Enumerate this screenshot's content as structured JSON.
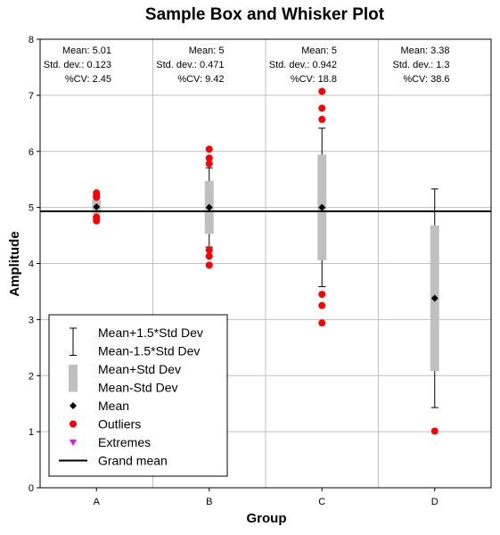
{
  "chart_data": {
    "type": "box",
    "title": "Sample Box and Whisker Plot",
    "xlabel": "Group",
    "ylabel": "Amplitude",
    "categories": [
      "A",
      "B",
      "C",
      "D"
    ],
    "ylim": [
      0,
      8
    ],
    "yticks": [
      "0",
      "1",
      "2",
      "3",
      "4",
      "5",
      "6",
      "7",
      "8"
    ],
    "grid": true,
    "grand_mean": 4.93,
    "groups": [
      {
        "label": "A",
        "mean": 5.01,
        "box_low": 4.888,
        "box_high": 5.133,
        "whisker_low": 4.826,
        "whisker_high": 5.195,
        "outliers": [
          5.26,
          5.23,
          5.18,
          4.83,
          4.79,
          4.76
        ],
        "stats": {
          "mean": "Mean: 5.01",
          "sd": "Std. dev.: 0.123",
          "cv": "%CV: 2.45"
        }
      },
      {
        "label": "B",
        "mean": 5.0,
        "box_low": 4.529,
        "box_high": 5.471,
        "whisker_low": 4.294,
        "whisker_high": 5.707,
        "outliers": [
          6.04,
          5.88,
          5.78,
          4.24,
          4.13,
          3.97
        ],
        "stats": {
          "mean": "Mean: 5",
          "sd": "Std. dev.: 0.471",
          "cv": "%CV: 9.42"
        }
      },
      {
        "label": "C",
        "mean": 5.0,
        "box_low": 4.058,
        "box_high": 5.942,
        "whisker_low": 3.587,
        "whisker_high": 6.413,
        "outliers": [
          7.07,
          6.77,
          6.57,
          3.45,
          3.25,
          2.94
        ],
        "stats": {
          "mean": "Mean: 5",
          "sd": "Std. dev.: 0.942",
          "cv": "%CV: 18.8"
        }
      },
      {
        "label": "D",
        "mean": 3.38,
        "box_low": 2.08,
        "box_high": 4.68,
        "whisker_low": 1.43,
        "whisker_high": 5.33,
        "outliers": [
          1.01
        ],
        "stats": {
          "mean": "Mean: 3.38",
          "sd": "Std. dev.: 1.3",
          "cv": "%CV: 38.6"
        }
      }
    ],
    "legend": {
      "position": "bottom-left",
      "items": [
        {
          "kind": "whisker",
          "labels": [
            "Mean+1.5*Std Dev",
            "Mean-1.5*Std Dev"
          ]
        },
        {
          "kind": "box",
          "labels": [
            "Mean+Std Dev",
            "Mean-Std Dev"
          ]
        },
        {
          "kind": "mean",
          "labels": [
            "Mean"
          ]
        },
        {
          "kind": "outlier",
          "labels": [
            "Outliers"
          ]
        },
        {
          "kind": "extreme",
          "labels": [
            "Extremes"
          ]
        },
        {
          "kind": "grandmean",
          "labels": [
            "Grand mean"
          ]
        }
      ]
    },
    "colors": {
      "box": "#c0c0c0",
      "outlier": "#ff0000",
      "extreme": "#ff00ff",
      "mean": "#000000",
      "grid": "#c0c0c0",
      "grand_mean": "#000000"
    }
  }
}
